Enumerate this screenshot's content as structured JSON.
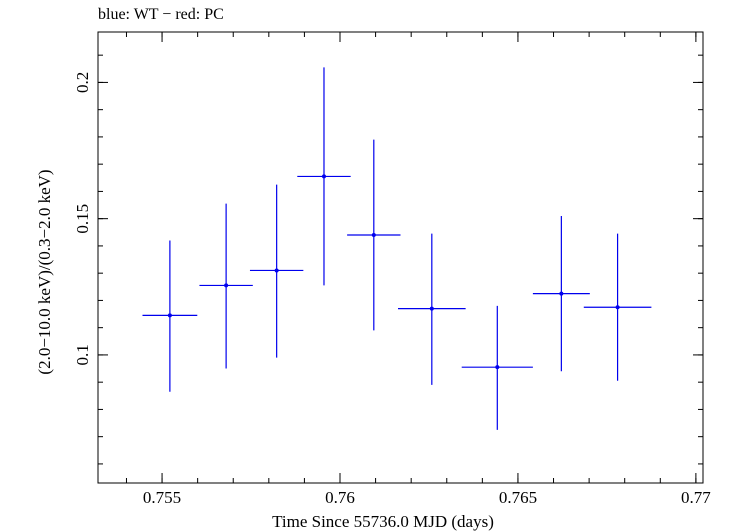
{
  "chart_data": {
    "type": "scatter",
    "title": "blue: WT − red: PC",
    "xlabel": "Time Since 55736.0 MJD (days)",
    "ylabel": "(2.0−10.0 keV)/(0.3−2.0 keV)",
    "xlim": [
      0.7532,
      0.7702
    ],
    "ylim": [
      0.053,
      0.2185
    ],
    "xticks": [
      {
        "value": 0.755,
        "label": "0.755"
      },
      {
        "value": 0.76,
        "label": "0.76"
      },
      {
        "value": 0.765,
        "label": "0.765"
      },
      {
        "value": 0.77,
        "label": "0.77"
      }
    ],
    "yticks": [
      {
        "value": 0.1,
        "label": "0.1"
      },
      {
        "value": 0.15,
        "label": "0.15"
      },
      {
        "value": 0.2,
        "label": "0.2"
      }
    ],
    "x_minor_step": 0.001,
    "y_minor_step": 0.01,
    "grid": false,
    "series": [
      {
        "name": "WT",
        "color": "#0000ee",
        "points": [
          {
            "x": 0.75522,
            "xerr": 0.00077,
            "y": 0.1145,
            "ylo": 0.0865,
            "yhi": 0.142
          },
          {
            "x": 0.7568,
            "xerr": 0.00075,
            "y": 0.1255,
            "ylo": 0.095,
            "yhi": 0.1555
          },
          {
            "x": 0.75822,
            "xerr": 0.00075,
            "y": 0.131,
            "ylo": 0.099,
            "yhi": 0.1625
          },
          {
            "x": 0.75955,
            "xerr": 0.00075,
            "y": 0.1655,
            "ylo": 0.1255,
            "yhi": 0.2055
          },
          {
            "x": 0.76095,
            "xerr": 0.00075,
            "y": 0.144,
            "ylo": 0.109,
            "yhi": 0.179
          },
          {
            "x": 0.76258,
            "xerr": 0.00095,
            "y": 0.117,
            "ylo": 0.089,
            "yhi": 0.1445
          },
          {
            "x": 0.76442,
            "xerr": 0.001,
            "y": 0.0955,
            "ylo": 0.0725,
            "yhi": 0.118
          },
          {
            "x": 0.76622,
            "xerr": 0.0008,
            "y": 0.1225,
            "ylo": 0.094,
            "yhi": 0.151
          },
          {
            "x": 0.7678,
            "xerr": 0.00095,
            "y": 0.1175,
            "ylo": 0.0905,
            "yhi": 0.1445
          }
        ]
      }
    ]
  }
}
